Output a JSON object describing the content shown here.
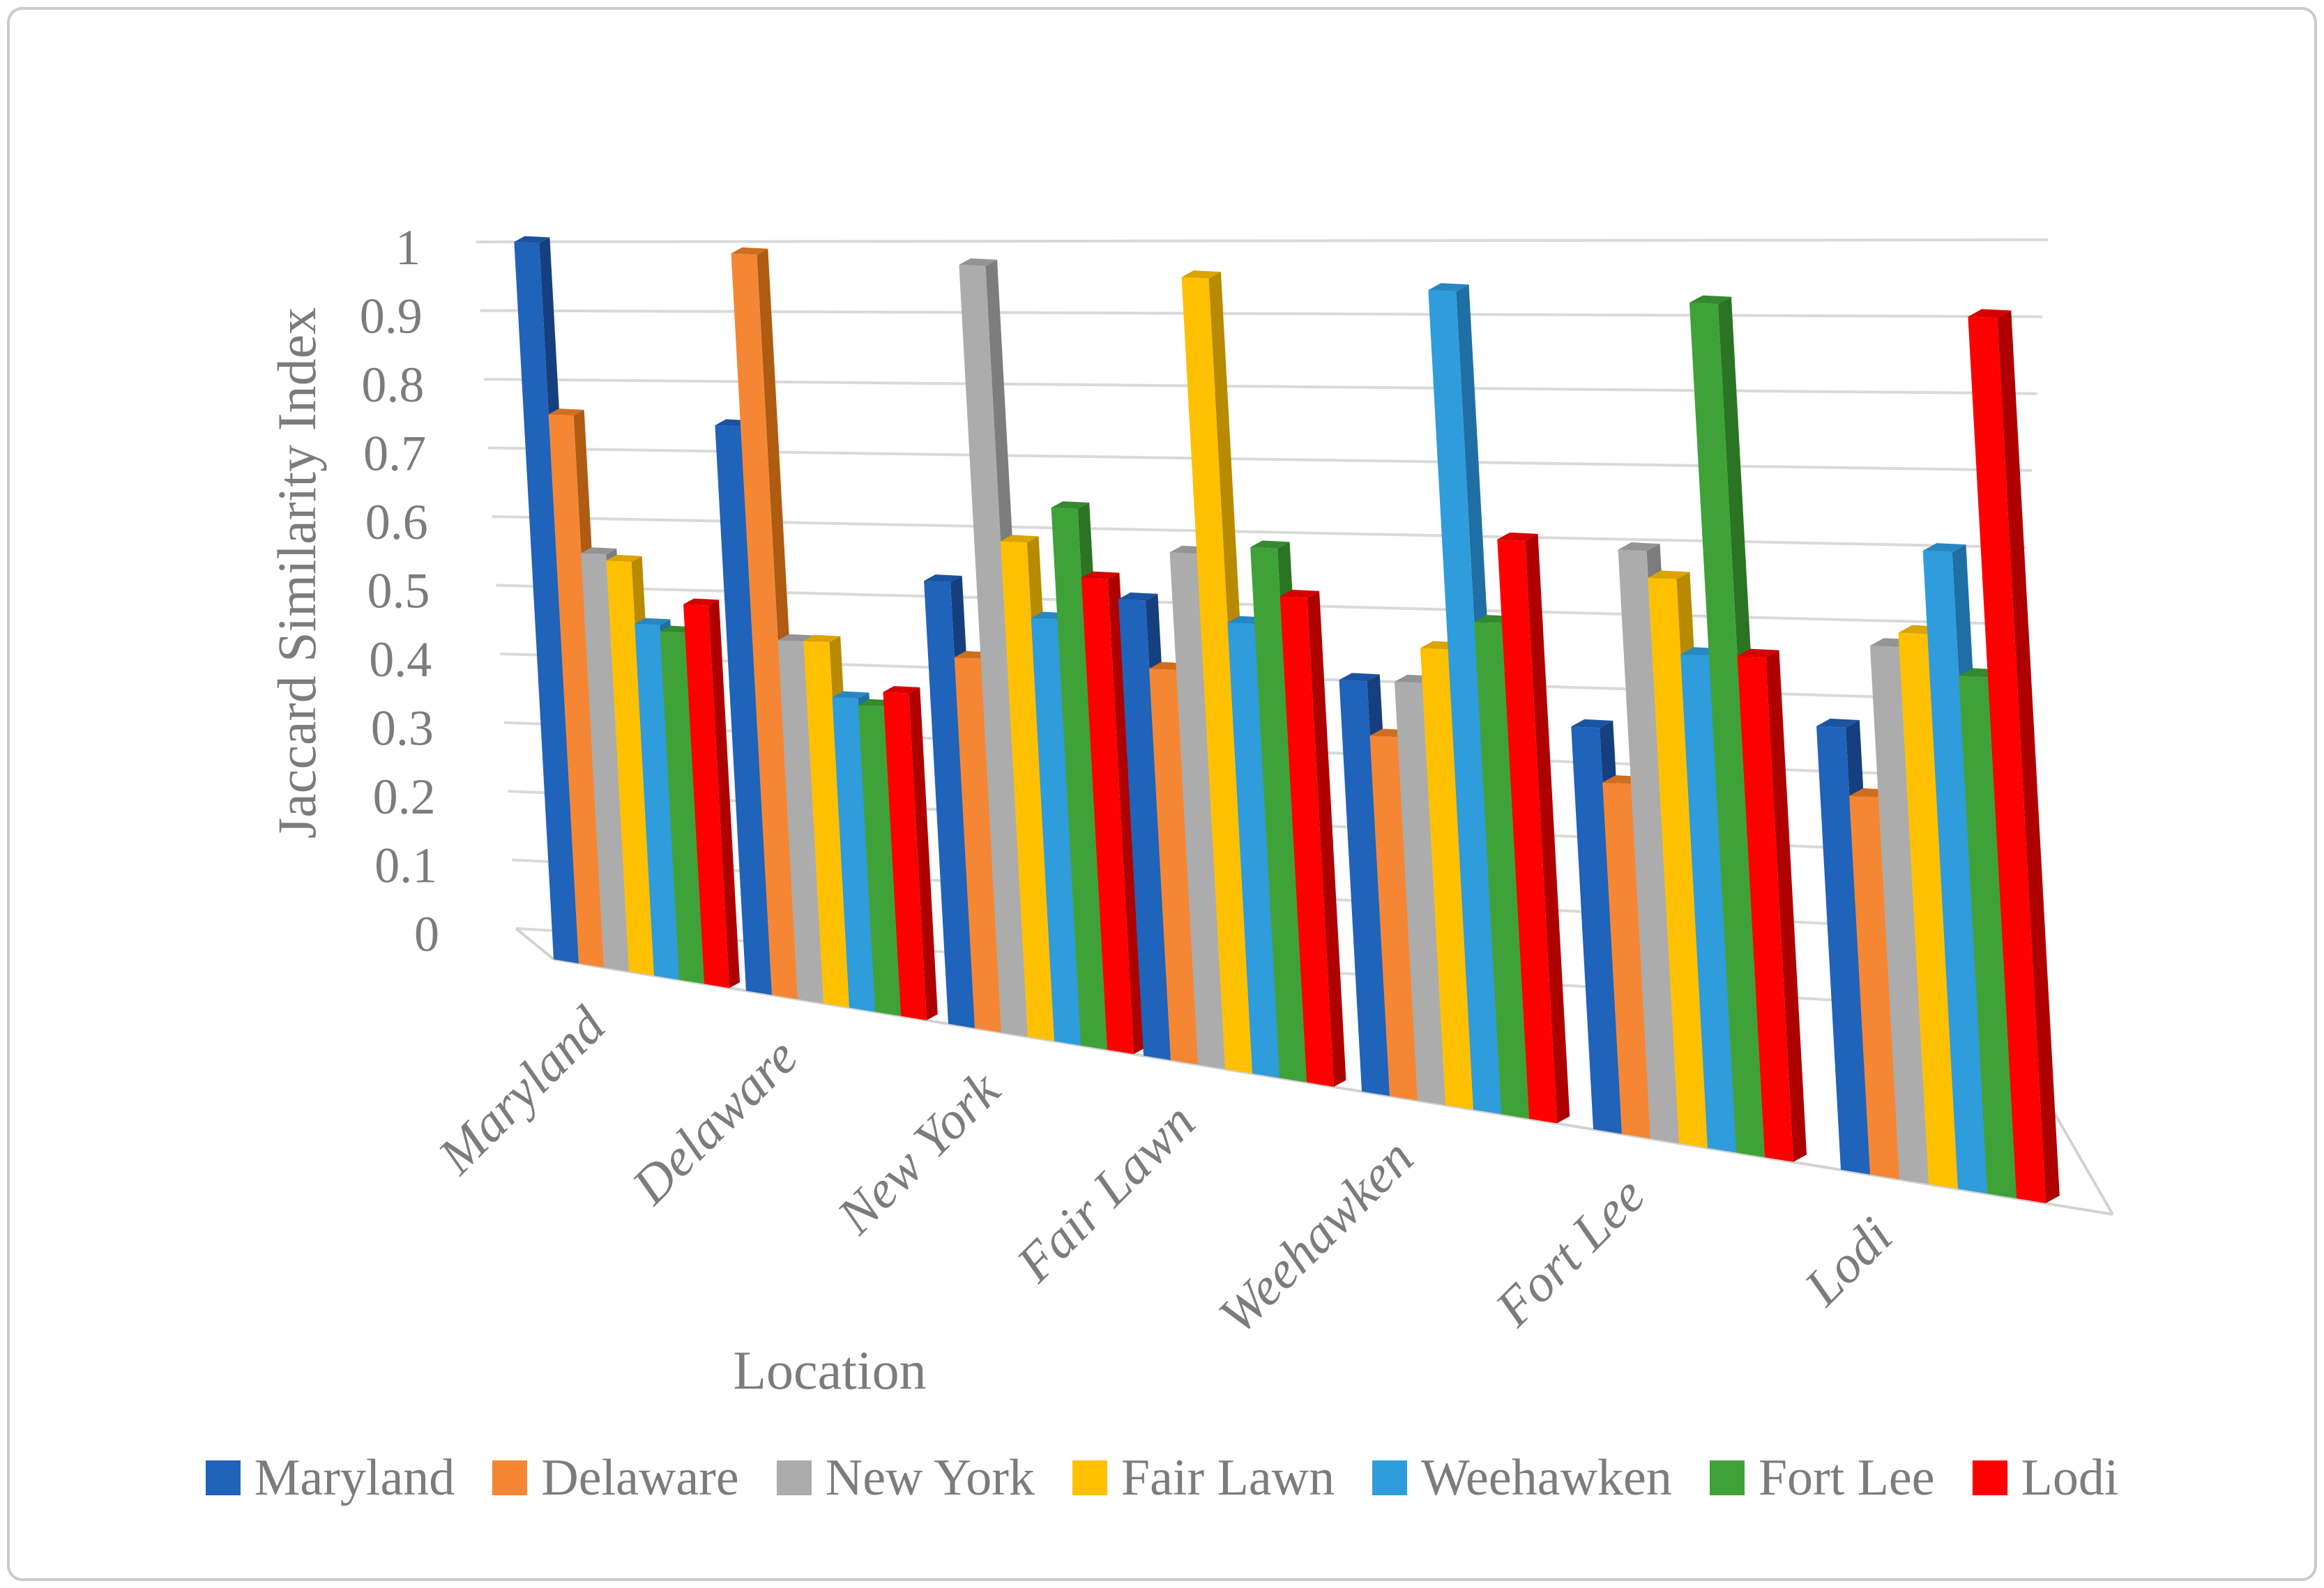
{
  "figure": {
    "background": "#FFFFFF",
    "border_color": "#C9CBCD"
  },
  "styles": {
    "text_color": "#7C7C7C",
    "gridline_color": "#D9D9D9",
    "floor_line_color": "#D2D2D2"
  },
  "chart_data": {
    "type": "bar",
    "style": "3d-clustered-column",
    "title": "",
    "xlabel": "Location",
    "ylabel": "Jaccard Similarity Index",
    "ylim": [
      0,
      1
    ],
    "ytick_step": 0.1,
    "yticks": [
      "1",
      "0.9",
      "0.8",
      "0.7",
      "0.6",
      "0.5",
      "0.4",
      "0.3",
      "0.2",
      "0.1",
      "0"
    ],
    "grid": true,
    "legend_position": "bottom",
    "categories": [
      "Maryland",
      "Delaware",
      "New York",
      "Fair Lawn",
      "Weehawken",
      "Fort Lee",
      "Lodi"
    ],
    "series": [
      {
        "name": "Maryland",
        "color": "#1F63BA",
        "side_color": "#153F7E",
        "top_color": "#1A53A0",
        "values": [
          1.0,
          0.75,
          0.54,
          0.53,
          0.43,
          0.38,
          0.4
        ]
      },
      {
        "name": "Delaware",
        "color": "#F58634",
        "side_color": "#AF5B12",
        "top_color": "#D06E20",
        "values": [
          0.75,
          1.0,
          0.43,
          0.43,
          0.35,
          0.3,
          0.3
        ]
      },
      {
        "name": "New York",
        "color": "#ACACAC",
        "side_color": "#7D7D7D",
        "top_color": "#949494",
        "values": [
          0.55,
          0.44,
          1.0,
          0.6,
          0.43,
          0.64,
          0.52
        ]
      },
      {
        "name": "Fair Lawn",
        "color": "#FFC002",
        "side_color": "#B78A00",
        "top_color": "#DBA400",
        "values": [
          0.54,
          0.44,
          0.6,
          1.0,
          0.48,
          0.6,
          0.54
        ]
      },
      {
        "name": "Weehawken",
        "color": "#2F9CDC",
        "side_color": "#1F6FA4",
        "top_color": "#2887C2",
        "values": [
          0.45,
          0.36,
          0.49,
          0.5,
          1.0,
          0.49,
          0.66
        ]
      },
      {
        "name": "Fort Lee",
        "color": "#3FA238",
        "side_color": "#2A7424",
        "top_color": "#35892E",
        "values": [
          0.44,
          0.35,
          0.65,
          0.61,
          0.52,
          1.0,
          0.48
        ]
      },
      {
        "name": "Lodi",
        "color": "#FE0000",
        "side_color": "#AF0000",
        "top_color": "#D60000",
        "values": [
          0.48,
          0.37,
          0.55,
          0.54,
          0.64,
          0.49,
          1.0
        ]
      }
    ]
  }
}
